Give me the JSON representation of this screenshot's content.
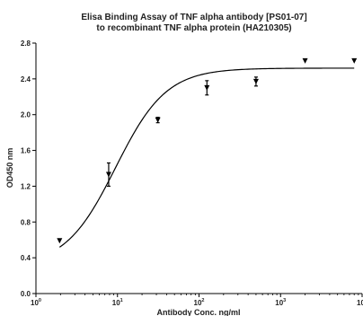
{
  "chart_data": {
    "type": "scatter",
    "title_lines": [
      "Elisa Binding Assay of TNF alpha antibody [PS01-07]",
      "to recombinant TNF alpha protein (HA210305)"
    ],
    "xlabel": "Antibody Conc. ng/ml",
    "ylabel": "OD450 nm",
    "x_scale": "log",
    "xlim": [
      1,
      10000
    ],
    "ylim": [
      0,
      2.8
    ],
    "x_ticks": [
      {
        "value": 1,
        "base": "10",
        "exp": "0"
      },
      {
        "value": 10,
        "base": "10",
        "exp": "1"
      },
      {
        "value": 100,
        "base": "10",
        "exp": "2"
      },
      {
        "value": 1000,
        "base": "10",
        "exp": "3"
      },
      {
        "value": 10000,
        "base": "10",
        "exp": "4"
      }
    ],
    "y_ticks": [
      "0.0",
      "0.4",
      "0.8",
      "1.2",
      "1.6",
      "2.0",
      "2.4",
      "2.8"
    ],
    "grid": false,
    "points": [
      {
        "x": 1.95,
        "y": 0.59,
        "err": 0.0
      },
      {
        "x": 7.8,
        "y": 1.33,
        "err": 0.13
      },
      {
        "x": 31.25,
        "y": 1.94,
        "err": 0.03
      },
      {
        "x": 125,
        "y": 2.3,
        "err": 0.08
      },
      {
        "x": 500,
        "y": 2.37,
        "err": 0.05
      },
      {
        "x": 2000,
        "y": 2.6,
        "err": 0.0
      },
      {
        "x": 8000,
        "y": 2.6,
        "err": 0.0
      }
    ],
    "fit": {
      "bottom": 0.3,
      "top": 2.52,
      "ec50": 9.5,
      "hill": 1.4
    }
  }
}
